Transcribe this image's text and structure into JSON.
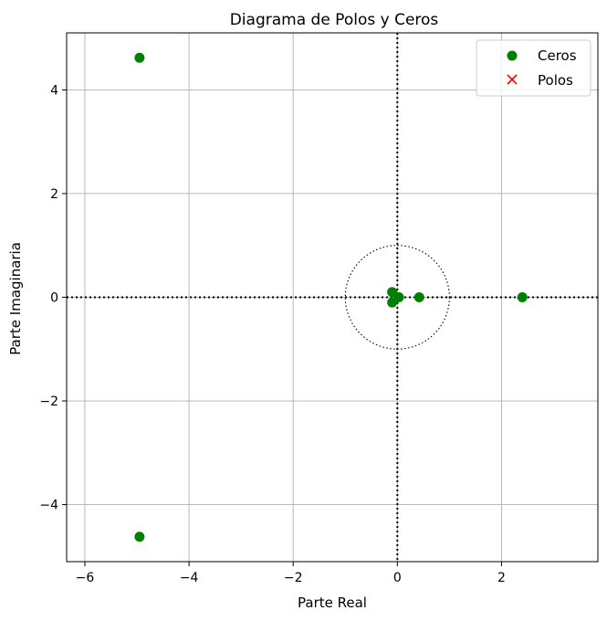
{
  "chart_data": {
    "type": "scatter",
    "title": "Diagrama de Polos y Ceros",
    "xlabel": "Parte Real",
    "ylabel": "Parte Imaginaria",
    "xlim": [
      -6.35,
      3.85
    ],
    "ylim": [
      -5.1,
      5.1
    ],
    "xticks": [
      -6,
      -4,
      -2,
      0,
      2
    ],
    "yticks": [
      -4,
      -2,
      0,
      2,
      4
    ],
    "xtick_labels": [
      "−6",
      "−4",
      "−2",
      "0",
      "2"
    ],
    "ytick_labels": [
      "−4",
      "−2",
      "0",
      "2",
      "4"
    ],
    "grid": true,
    "legend_position": "top-right",
    "unit_circle": true,
    "series": [
      {
        "name": "Ceros",
        "marker": "circle",
        "color": "#008000",
        "points": [
          {
            "x": -4.95,
            "y": 4.62
          },
          {
            "x": -4.95,
            "y": -4.62
          },
          {
            "x": 2.4,
            "y": 0.0
          },
          {
            "x": 0.42,
            "y": 0.0
          },
          {
            "x": 0.03,
            "y": 0.0
          },
          {
            "x": -0.1,
            "y": 0.1
          },
          {
            "x": -0.1,
            "y": -0.1
          }
        ]
      },
      {
        "name": "Polos",
        "marker": "x",
        "color": "#ff0000",
        "points": []
      }
    ]
  }
}
